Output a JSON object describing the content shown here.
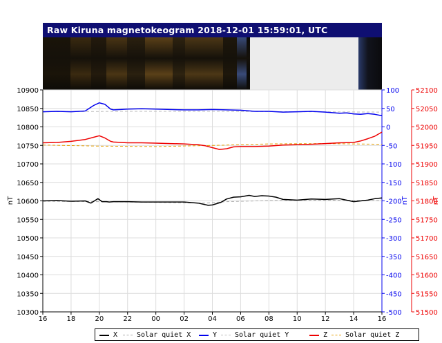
{
  "title": "Raw Kiruna magnetokeogram 2018-12-01 15:59:01, UTC",
  "colors": {
    "title_bar": "#0f0f72",
    "x_series": "#000000",
    "y_series": "#0000ee",
    "z_series": "#ee0000",
    "quiet_x": "#aaaaaa",
    "quiet_y": "#bbbbbb",
    "quiet_z": "#e8a000",
    "keogram_gap": "#ececec"
  },
  "chart_data": {
    "type": "line",
    "title": "Raw Kiruna magnetokeogram 2018-12-01 15:59:01, UTC",
    "xlabel": "",
    "x_ticks": [
      "16",
      "18",
      "20",
      "22",
      "00",
      "02",
      "04",
      "06",
      "08",
      "10",
      "12",
      "14",
      "16"
    ],
    "x_range_hours": [
      0,
      24
    ],
    "axes": {
      "left": {
        "label": "nT",
        "ylim": [
          10300,
          10900
        ],
        "ticks": [
          10300,
          10350,
          10400,
          10450,
          10500,
          10550,
          10600,
          10650,
          10700,
          10750,
          10800,
          10850,
          10900
        ],
        "color": "#000000"
      },
      "right1": {
        "label": "nT",
        "ylim": [
          -500,
          100
        ],
        "ticks": [
          -500,
          -450,
          -400,
          -350,
          -300,
          -250,
          -200,
          -150,
          -100,
          -50,
          0,
          50,
          100
        ],
        "color": "#0000ee"
      },
      "right2": {
        "label": "nT",
        "ylim": [
          51500,
          52100
        ],
        "ticks": [
          51500,
          51550,
          51600,
          51650,
          51700,
          51750,
          51800,
          51850,
          51900,
          51950,
          52000,
          52050,
          52100
        ],
        "color": "#ee0000"
      }
    },
    "series": [
      {
        "name": "X",
        "axis": "left",
        "color": "#000000",
        "style": "solid",
        "x": [
          0,
          1,
          2,
          3,
          3.4,
          3.9,
          4.2,
          4.5,
          4.7,
          5,
          6,
          7,
          8,
          9,
          10,
          11,
          11.7,
          12,
          12.6,
          13,
          13.5,
          14,
          14.6,
          15,
          15.5,
          16,
          16.5,
          17,
          18,
          19,
          20,
          21,
          22,
          23,
          23.5,
          24
        ],
        "y": [
          10600,
          10601,
          10599,
          10600,
          10594,
          10606,
          10598,
          10598,
          10597,
          10598,
          10598,
          10597,
          10597,
          10597,
          10597,
          10594,
          10588,
          10589,
          10596,
          10605,
          10610,
          10611,
          10615,
          10612,
          10614,
          10613,
          10610,
          10604,
          10602,
          10605,
          10604,
          10606,
          10598,
          10602,
          10606,
          10608
        ]
      },
      {
        "name": "Solar quiet X",
        "axis": "left",
        "color": "#aaaaaa",
        "style": "dashed",
        "x": [
          0,
          4,
          8,
          11.5,
          13,
          16,
          20,
          24
        ],
        "y": [
          10599,
          10598,
          10596,
          10594,
          10598,
          10601,
          10602,
          10601
        ]
      },
      {
        "name": "Y",
        "axis": "right1",
        "color": "#0000ee",
        "style": "solid",
        "x": [
          0,
          1,
          2,
          3,
          3.6,
          4,
          4.4,
          4.8,
          5,
          5.5,
          6,
          7,
          8,
          9,
          10,
          11,
          12,
          13,
          14,
          15,
          16,
          17,
          18,
          19,
          20,
          21,
          21.5,
          22,
          22.5,
          23,
          23.5,
          24
        ],
        "y": [
          41,
          42,
          41,
          43,
          58,
          65,
          61,
          48,
          46,
          47,
          48,
          49,
          48,
          47,
          46,
          46,
          47,
          46,
          45,
          42,
          42,
          40,
          41,
          42,
          40,
          37,
          38,
          35,
          34,
          36,
          34,
          30
        ]
      },
      {
        "name": "Solar quiet Y",
        "axis": "right1",
        "color": "#bbbbbb",
        "style": "dashed",
        "x": [
          0,
          6,
          12,
          18,
          24
        ],
        "y": [
          41,
          42,
          42,
          41,
          40
        ]
      },
      {
        "name": "Z",
        "axis": "right2",
        "color": "#ee0000",
        "style": "solid",
        "x": [
          0,
          1,
          2,
          3,
          3.5,
          4,
          4.4,
          4.8,
          5,
          6,
          7,
          8,
          9,
          10,
          11,
          11.5,
          12,
          12.5,
          13,
          13.5,
          14,
          15,
          16,
          17,
          18,
          19,
          20,
          21,
          22,
          22.5,
          23,
          23.5,
          24
        ],
        "y": [
          51957,
          51958,
          51961,
          51966,
          51971,
          51976,
          51970,
          51961,
          51959,
          51957,
          51957,
          51956,
          51955,
          51954,
          51952,
          51949,
          51944,
          51939,
          51941,
          51946,
          51947,
          51947,
          51948,
          51951,
          51952,
          51953,
          51955,
          51957,
          51958,
          51962,
          51968,
          51975,
          51986
        ]
      },
      {
        "name": "Solar quiet Z",
        "axis": "right2",
        "color": "#e8a000",
        "style": "dashed",
        "x": [
          0,
          4,
          8,
          12,
          16,
          20,
          24
        ],
        "y": [
          51951,
          51948,
          51947,
          51950,
          51954,
          51955,
          51953
        ]
      }
    ],
    "grid": true,
    "legend_placement": "bottom"
  },
  "legend": [
    {
      "label": "X",
      "color": "#000000",
      "style": "solid"
    },
    {
      "label": "Solar quiet X",
      "color": "#aaaaaa",
      "style": "dashed"
    },
    {
      "label": "Y",
      "color": "#0000ee",
      "style": "solid"
    },
    {
      "label": "Solar quiet Y",
      "color": "#bbbbbb",
      "style": "dashed"
    },
    {
      "label": "Z",
      "color": "#ee0000",
      "style": "solid"
    },
    {
      "label": "Solar quiet Z",
      "color": "#e8a000",
      "style": "dashed"
    }
  ]
}
